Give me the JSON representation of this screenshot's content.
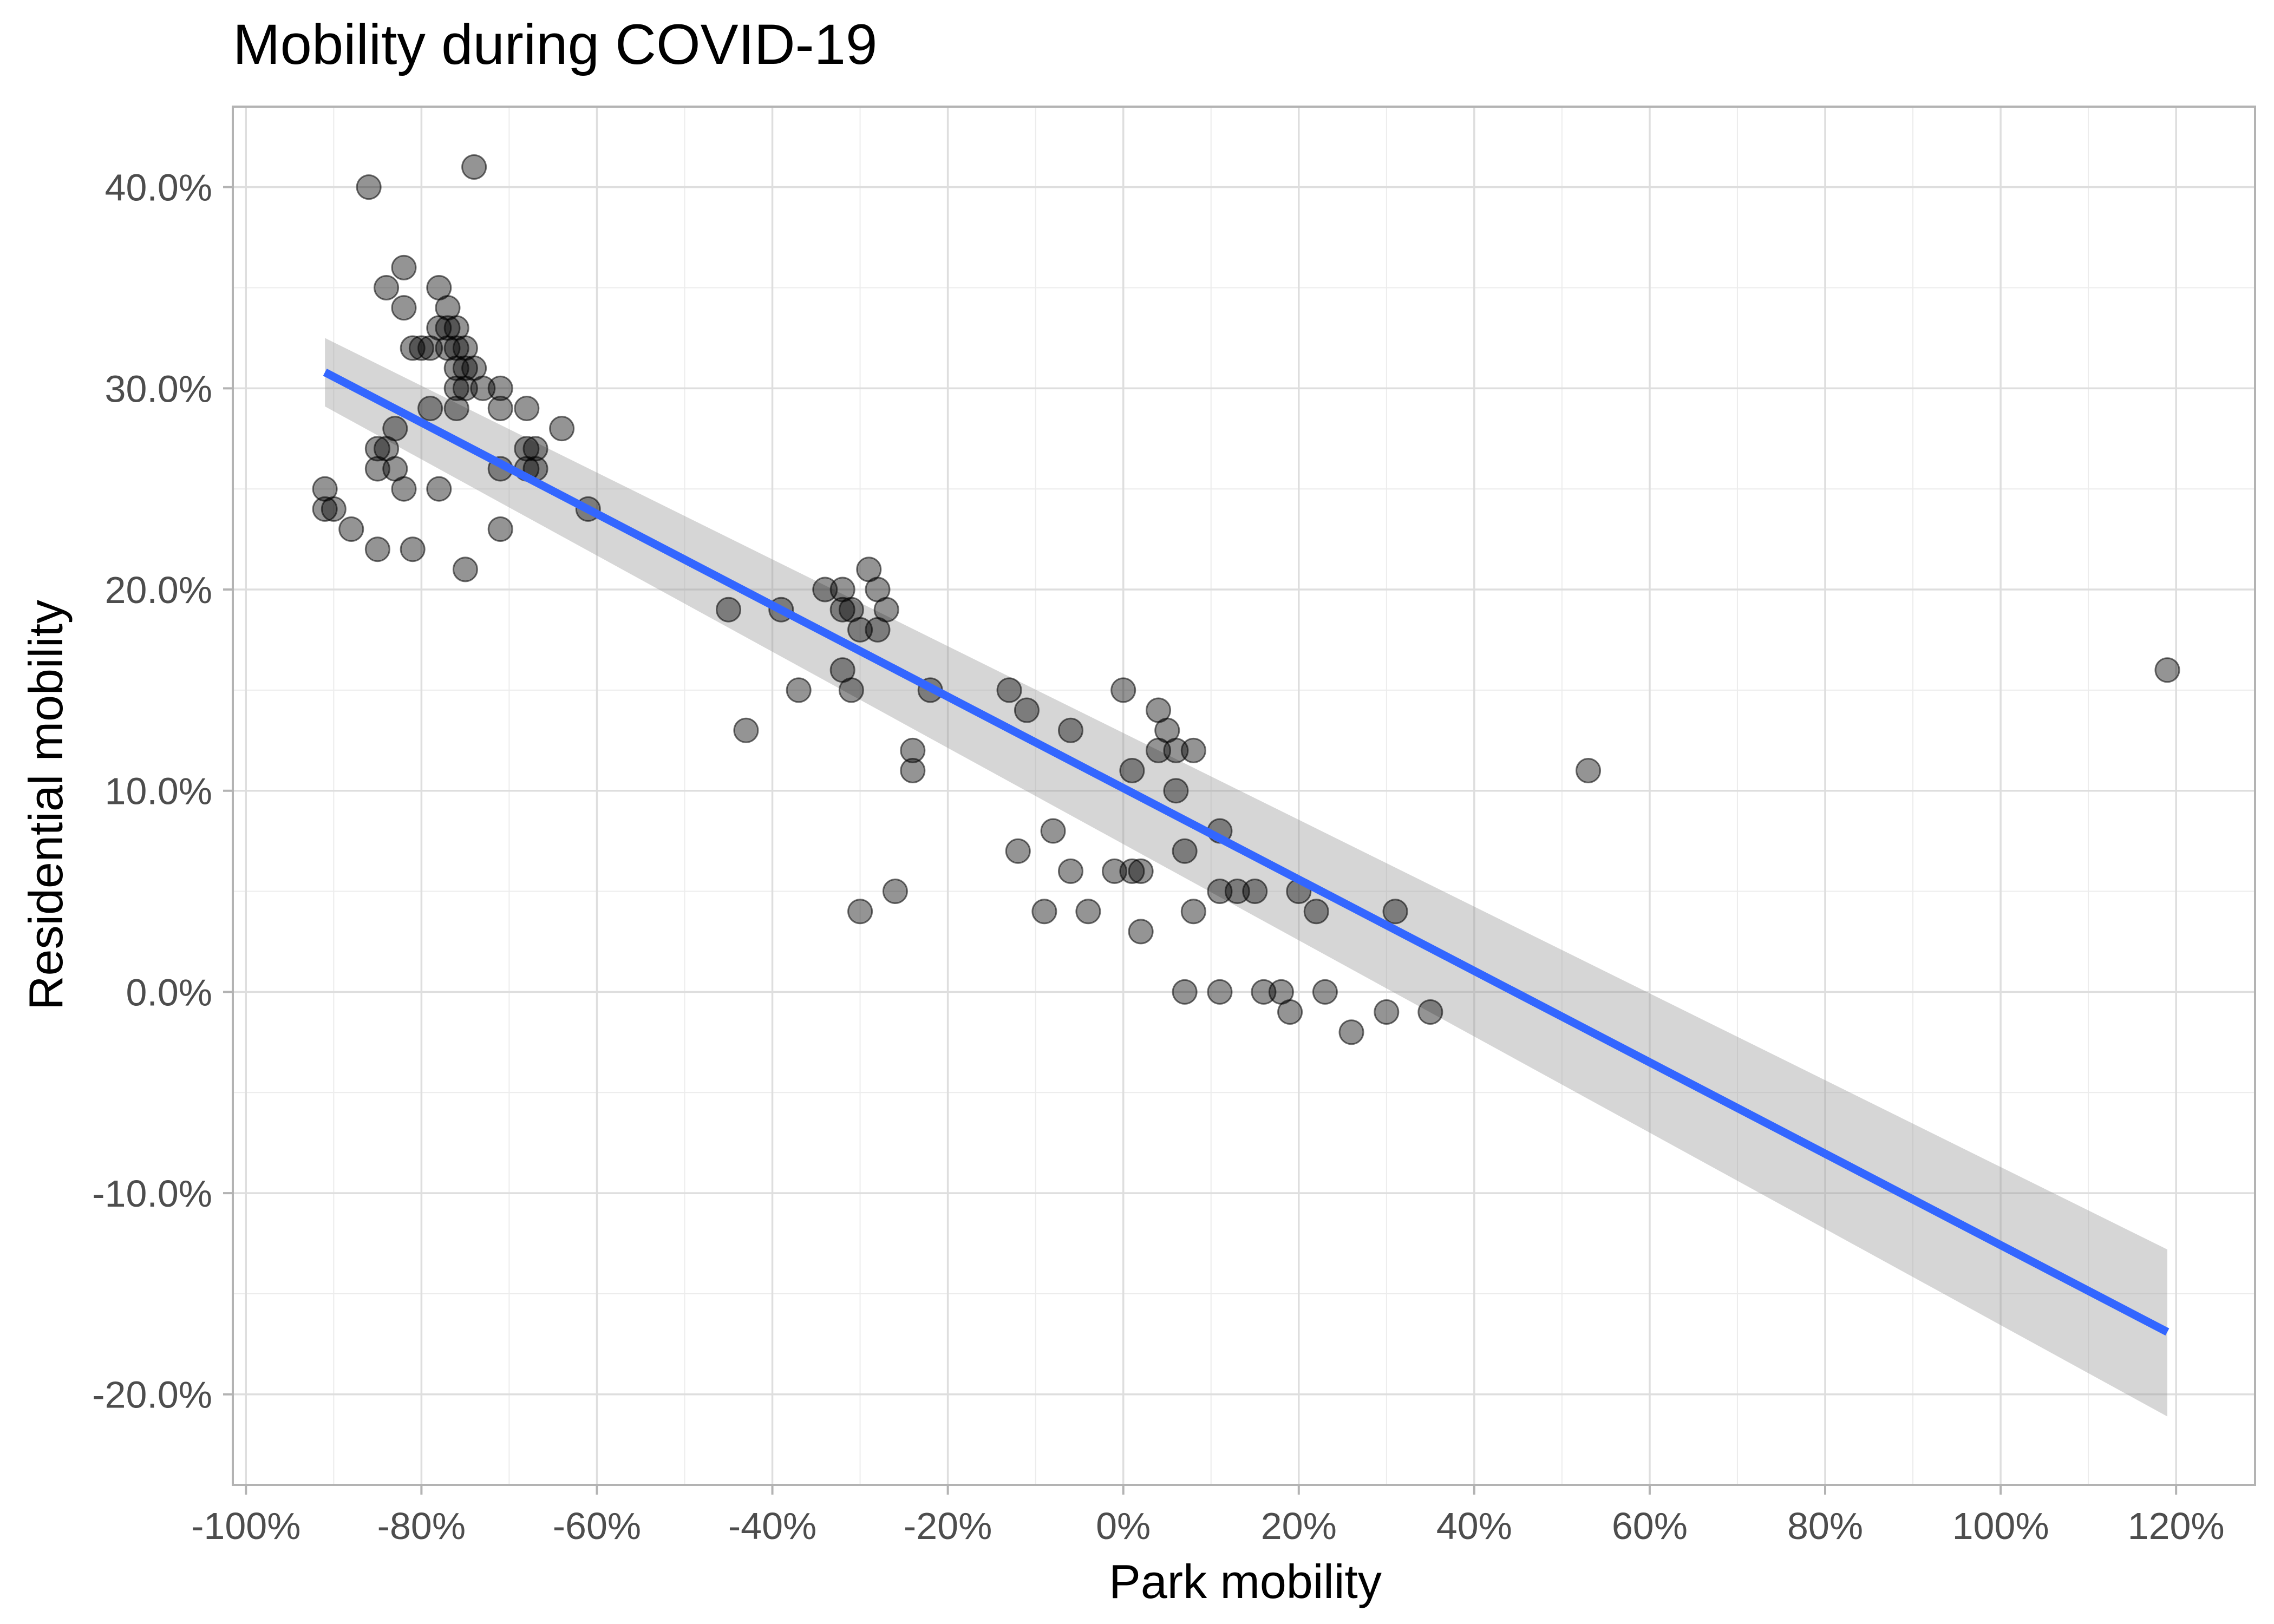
{
  "chart_data": {
    "type": "scatter",
    "title": "Mobility during COVID-19",
    "xlabel": "Park mobility",
    "ylabel": "Residential mobility",
    "xlim": [
      -101.5,
      129
    ],
    "ylim": [
      -24.5,
      44
    ],
    "x_ticks": [
      -100,
      -80,
      -60,
      -40,
      -20,
      0,
      20,
      40,
      60,
      80,
      100,
      120
    ],
    "x_tick_labels": [
      "-100%",
      "-80%",
      "-60%",
      "-40%",
      "-20%",
      "0%",
      "20%",
      "40%",
      "60%",
      "80%",
      "100%",
      "120%"
    ],
    "y_ticks": [
      -20,
      -10,
      0,
      10,
      20,
      30,
      40
    ],
    "y_tick_labels": [
      "-20.0%",
      "-10.0%",
      "0.0%",
      "10.0%",
      "20.0%",
      "30.0%",
      "40.0%"
    ],
    "grid": true,
    "point_color": "#000000",
    "points": [
      [
        -86,
        40
      ],
      [
        -74,
        41
      ],
      [
        -82,
        36
      ],
      [
        -84,
        35
      ],
      [
        -82,
        34
      ],
      [
        -78,
        35
      ],
      [
        -77,
        34
      ],
      [
        -81,
        32
      ],
      [
        -80,
        32
      ],
      [
        -79,
        32
      ],
      [
        -78,
        33
      ],
      [
        -77,
        32
      ],
      [
        -77,
        33
      ],
      [
        -76,
        33
      ],
      [
        -76,
        32
      ],
      [
        -75,
        32
      ],
      [
        -76,
        31
      ],
      [
        -75,
        31
      ],
      [
        -74,
        31
      ],
      [
        -76,
        30
      ],
      [
        -75,
        30
      ],
      [
        -73,
        30
      ],
      [
        -71,
        30
      ],
      [
        -79,
        29
      ],
      [
        -76,
        29
      ],
      [
        -71,
        29
      ],
      [
        -68,
        29
      ],
      [
        -64,
        28
      ],
      [
        -85,
        27
      ],
      [
        -84,
        27
      ],
      [
        -83,
        28
      ],
      [
        -83,
        26
      ],
      [
        -85,
        26
      ],
      [
        -68,
        27
      ],
      [
        -67,
        27
      ],
      [
        -68,
        26
      ],
      [
        -67,
        26
      ],
      [
        -71,
        26
      ],
      [
        -91,
        25
      ],
      [
        -82,
        25
      ],
      [
        -78,
        25
      ],
      [
        -91,
        24
      ],
      [
        -90,
        24
      ],
      [
        -61,
        24
      ],
      [
        -88,
        23
      ],
      [
        -71,
        23
      ],
      [
        -85,
        22
      ],
      [
        -81,
        22
      ],
      [
        -75,
        21
      ],
      [
        -45,
        19
      ],
      [
        -39,
        19
      ],
      [
        -34,
        20
      ],
      [
        -32,
        20
      ],
      [
        -32,
        19
      ],
      [
        -31,
        19
      ],
      [
        -30,
        18
      ],
      [
        -29,
        21
      ],
      [
        -28,
        20
      ],
      [
        -28,
        18
      ],
      [
        -27,
        19
      ],
      [
        -32,
        16
      ],
      [
        -31,
        15
      ],
      [
        -37,
        15
      ],
      [
        -43,
        13
      ],
      [
        -22,
        15
      ],
      [
        -24,
        12
      ],
      [
        -24,
        11
      ],
      [
        -26,
        5
      ],
      [
        -30,
        4
      ],
      [
        -13,
        15
      ],
      [
        -11,
        14
      ],
      [
        -6,
        13
      ],
      [
        0,
        15
      ],
      [
        1,
        11
      ],
      [
        4,
        14
      ],
      [
        5,
        13
      ],
      [
        4,
        12
      ],
      [
        6,
        12
      ],
      [
        8,
        12
      ],
      [
        6,
        10
      ],
      [
        -12,
        7
      ],
      [
        -8,
        8
      ],
      [
        -9,
        4
      ],
      [
        -6,
        6
      ],
      [
        -4,
        4
      ],
      [
        -1,
        6
      ],
      [
        1,
        6
      ],
      [
        2,
        6
      ],
      [
        2,
        3
      ],
      [
        7,
        7
      ],
      [
        11,
        8
      ],
      [
        11,
        5
      ],
      [
        13,
        5
      ],
      [
        15,
        5
      ],
      [
        8,
        4
      ],
      [
        20,
        5
      ],
      [
        22,
        4
      ],
      [
        31,
        4
      ],
      [
        7,
        0
      ],
      [
        11,
        0
      ],
      [
        16,
        0
      ],
      [
        18,
        0
      ],
      [
        23,
        0
      ],
      [
        19,
        -1
      ],
      [
        26,
        -2
      ],
      [
        30,
        -1
      ],
      [
        35,
        -1
      ],
      [
        53,
        11
      ],
      [
        119,
        16
      ]
    ],
    "trend": {
      "method": "linear regression",
      "x": [
        -91,
        119
      ],
      "y": [
        30.8,
        -16.9
      ],
      "ci_lower": [
        29.1,
        -21.1
      ],
      "ci_upper": [
        32.5,
        -12.8
      ],
      "line_color": "#3366ff",
      "ribbon_color": "#999999"
    }
  }
}
